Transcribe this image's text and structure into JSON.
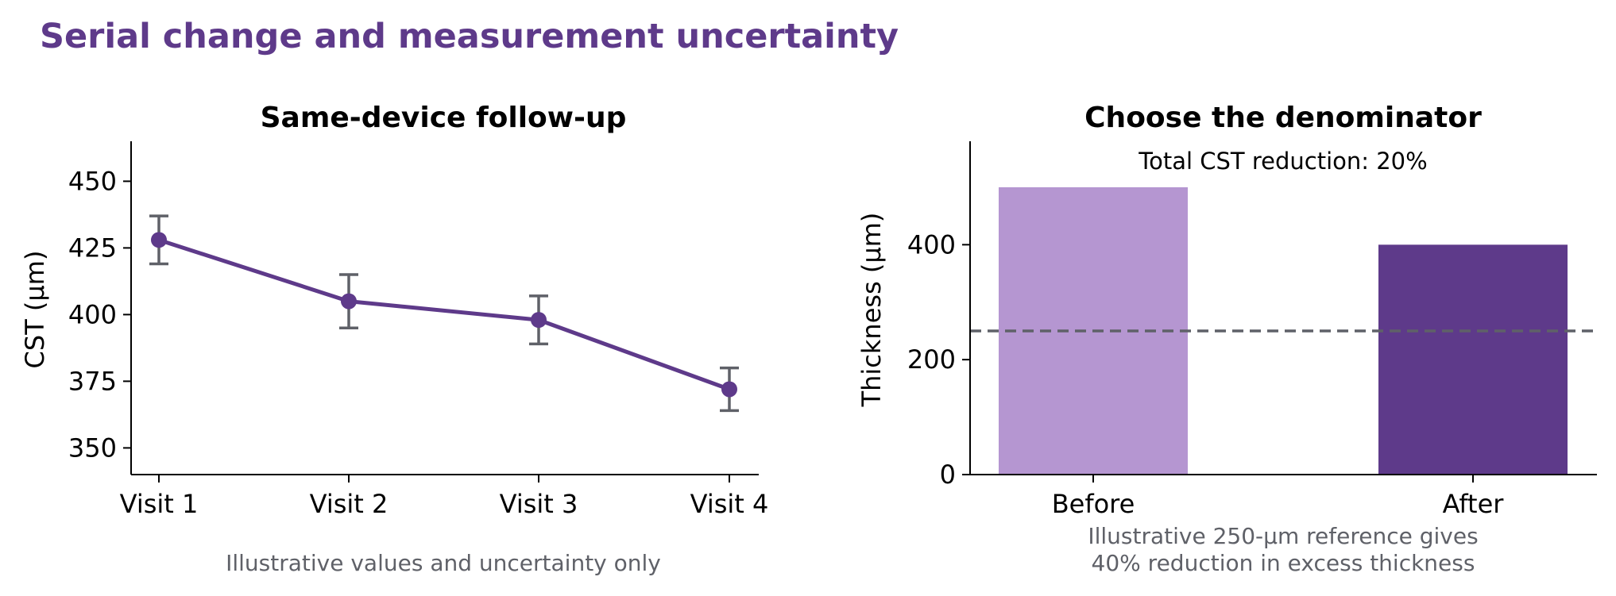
{
  "suptitle": "Serial change and measurement uncertainty",
  "colors": {
    "title": "#5e3a8a",
    "line": "#5e3a8a",
    "errorbar": "#5f6168",
    "bar_before": "#b596d1",
    "bar_after": "#5e3a8a",
    "reference_line": "#5f6168",
    "note": "#5f6168"
  },
  "chart_data": [
    {
      "type": "line",
      "title": "Same-device follow-up",
      "xlabel": "",
      "ylabel": "CST (µm)",
      "categories": [
        "Visit 1",
        "Visit 2",
        "Visit 3",
        "Visit 4"
      ],
      "values": [
        428,
        405,
        398,
        372
      ],
      "error_low": [
        419,
        395,
        389,
        364
      ],
      "error_high": [
        437,
        415,
        407,
        380
      ],
      "ylim": [
        340,
        465
      ],
      "yticks": [
        350,
        375,
        400,
        425,
        450
      ],
      "grid": false,
      "note": "Illustrative values and uncertainty only"
    },
    {
      "type": "bar",
      "title": "Choose the denominator",
      "xlabel": "",
      "ylabel": "Thickness (µm)",
      "categories": [
        "Before",
        "After"
      ],
      "values": [
        500,
        400
      ],
      "ylim": [
        0,
        580
      ],
      "yticks": [
        0,
        200,
        400
      ],
      "reference_line": 250,
      "annotation": "Total CST reduction: 20%",
      "grid": false,
      "note_lines": [
        "Illustrative 250-µm reference gives",
        "40% reduction in excess thickness"
      ]
    }
  ]
}
